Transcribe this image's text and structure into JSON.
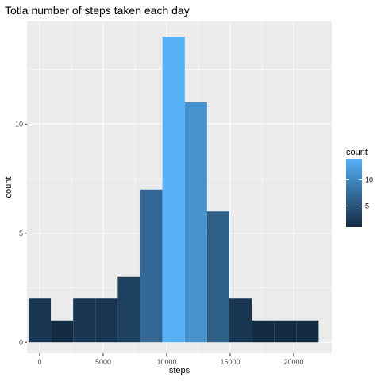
{
  "chart_data": {
    "type": "bar",
    "title": "Totla number of steps taken each day",
    "xlabel": "steps",
    "ylabel": "count",
    "xlim": [
      -1000,
      23000
    ],
    "ylim": [
      -0.5,
      14.7
    ],
    "x_ticks": [
      0,
      5000,
      10000,
      15000,
      20000
    ],
    "x_tick_labels": [
      "0",
      "5000",
      "10000",
      "15000",
      "20000"
    ],
    "y_ticks": [
      0,
      5,
      10
    ],
    "y_tick_labels": [
      "0",
      "5",
      "10"
    ],
    "binwidth": 1757,
    "bins": [
      {
        "center": 0,
        "count": 2
      },
      {
        "center": 1757,
        "count": 1
      },
      {
        "center": 3514,
        "count": 2
      },
      {
        "center": 5271,
        "count": 2
      },
      {
        "center": 7028,
        "count": 3
      },
      {
        "center": 8785,
        "count": 7
      },
      {
        "center": 10542,
        "count": 14
      },
      {
        "center": 12299,
        "count": 11
      },
      {
        "center": 14056,
        "count": 6
      },
      {
        "center": 15813,
        "count": 2
      },
      {
        "center": 17570,
        "count": 1
      },
      {
        "center": 19327,
        "count": 1
      },
      {
        "center": 21084,
        "count": 1
      }
    ],
    "grid": true,
    "legend": {
      "title": "count",
      "position": "right",
      "tick_labels": [
        "5",
        "10"
      ],
      "tick_values": [
        5,
        10
      ],
      "range": [
        1,
        14
      ],
      "low_color": "#132B43",
      "high_color": "#56B1F7"
    },
    "panel_color": "#EBEBEB",
    "grid_color": "#FFFFFF"
  }
}
